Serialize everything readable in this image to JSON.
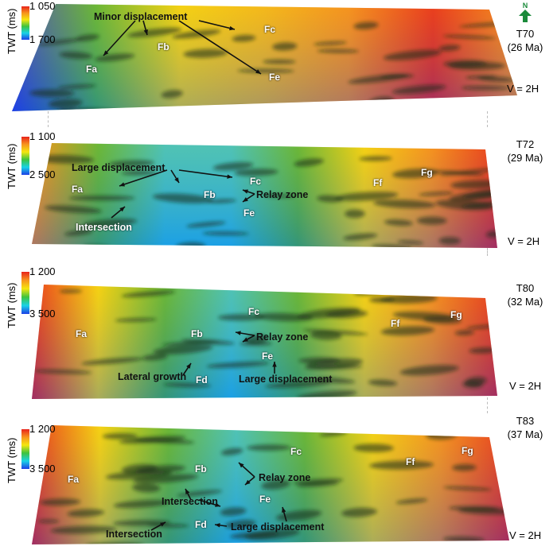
{
  "axis_label": "TWT (ms)",
  "vertical_exaggeration": "V = 2H",
  "north_label": "N",
  "colors": {
    "shallow": "#e8231b",
    "mid": "#f5e60f",
    "green": "#3ec33e",
    "cyan": "#19d3e6",
    "deep": "#1d3fe6"
  },
  "panels": [
    {
      "horizon": "T70",
      "age": "(26 Ma)",
      "scale_top": "1 050",
      "scale_bottom": "1 700",
      "faults": [
        "Fa",
        "Fb",
        "Fc",
        "Fe"
      ],
      "annotations": [
        "Minor displacement"
      ]
    },
    {
      "horizon": "T72",
      "age": "(29 Ma)",
      "scale_top": "1 100",
      "scale_bottom": "2 500",
      "faults": [
        "Fa",
        "Fb",
        "Fc",
        "Fe",
        "Ff",
        "Fg"
      ],
      "annotations": [
        "Large displacement",
        "Relay zone",
        "Intersection"
      ]
    },
    {
      "horizon": "T80",
      "age": "(32 Ma)",
      "scale_top": "1 200",
      "scale_bottom": "3 500",
      "faults": [
        "Fa",
        "Fb",
        "Fc",
        "Fe",
        "Fd",
        "Ff",
        "Fg"
      ],
      "annotations": [
        "Relay zone",
        "Lateral growth",
        "Large displacement"
      ]
    },
    {
      "horizon": "T83",
      "age": "(37 Ma)",
      "scale_top": "1 200",
      "scale_bottom": "3 500",
      "faults": [
        "Fa",
        "Fb",
        "Fc",
        "Fe",
        "Fd",
        "Ff",
        "Fg"
      ],
      "annotations": [
        "Relay zone",
        "Intersection",
        "Intersection",
        "Large displacement"
      ]
    }
  ]
}
